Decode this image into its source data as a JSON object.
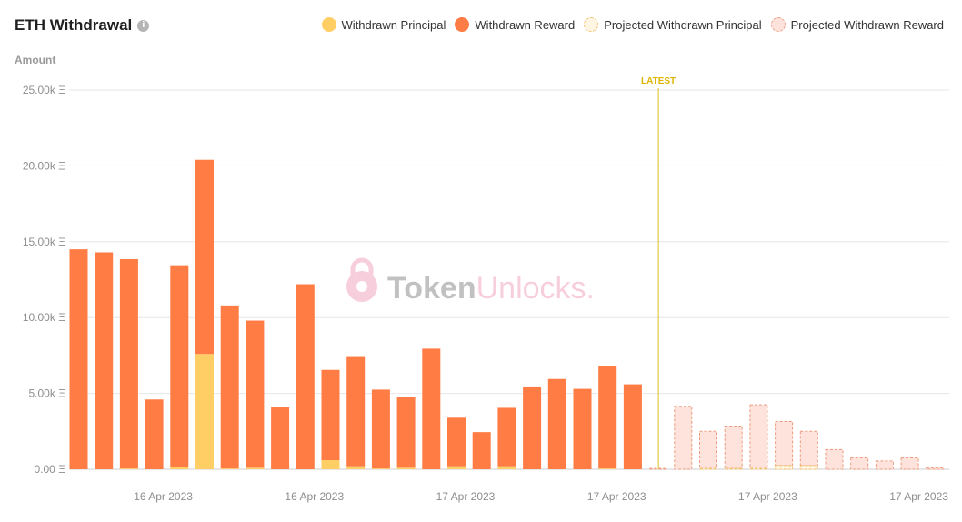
{
  "header": {
    "title": "ETH Withdrawal",
    "info_icon": "info-icon"
  },
  "legend": [
    {
      "label": "Withdrawn Principal",
      "color": "#ffcf66",
      "style": "solid"
    },
    {
      "label": "Withdrawn Reward",
      "color": "#ff7c45",
      "style": "solid"
    },
    {
      "label": "Projected Withdrawn Principal",
      "color": "#fff5e3",
      "style": "dashed"
    },
    {
      "label": "Projected Withdrawn Reward",
      "color": "#fde3dc",
      "style": "dashed"
    }
  ],
  "watermark": {
    "part1": "Token",
    "part2": "Unlocks",
    "dot": "."
  },
  "chart_data": {
    "type": "bar",
    "stacked": true,
    "ylabel": "Amount",
    "ylim": [
      0,
      25000
    ],
    "yticks": [
      0,
      5000,
      10000,
      15000,
      20000,
      25000
    ],
    "ytick_labels": [
      "0.00 Ξ",
      "5.00k Ξ",
      "10.00k Ξ",
      "15.00k Ξ",
      "20.00k Ξ",
      "25.00k Ξ"
    ],
    "grid": true,
    "legend_position": "top-right",
    "xtick_labels": [
      {
        "bar_index": 3,
        "label": "16 Apr 2023"
      },
      {
        "bar_index": 9,
        "label": "16 Apr 2023"
      },
      {
        "bar_index": 15,
        "label": "17 Apr 2023"
      },
      {
        "bar_index": 21,
        "label": "17 Apr 2023"
      },
      {
        "bar_index": 27,
        "label": "17 Apr 2023"
      },
      {
        "bar_index": 33,
        "label": "17 Apr 2023"
      }
    ],
    "latest_marker": {
      "label": "LATEST",
      "after_bar_index": 23
    },
    "series": [
      {
        "name": "Withdrawn Principal",
        "color": "#ffcf66",
        "values": [
          0,
          0,
          50,
          0,
          150,
          7600,
          50,
          100,
          0,
          0,
          600,
          200,
          50,
          100,
          0,
          200,
          0,
          200,
          0,
          0,
          0,
          50,
          0,
          null,
          null,
          null,
          null,
          null,
          null,
          null,
          null,
          null,
          null,
          null,
          null
        ]
      },
      {
        "name": "Withdrawn Reward",
        "color": "#ff7c45",
        "values": [
          14500,
          14300,
          13800,
          4600,
          13300,
          12800,
          10750,
          9700,
          4100,
          12200,
          5950,
          7200,
          5200,
          4650,
          7950,
          3200,
          2450,
          3850,
          5400,
          5950,
          5300,
          6750,
          5600,
          null,
          null,
          null,
          null,
          null,
          null,
          null,
          null,
          null,
          null,
          null,
          null
        ]
      },
      {
        "name": "Projected Withdrawn Principal",
        "color": "#fff5e3",
        "values": [
          null,
          null,
          null,
          null,
          null,
          null,
          null,
          null,
          null,
          null,
          null,
          null,
          null,
          null,
          null,
          null,
          null,
          null,
          null,
          null,
          null,
          null,
          null,
          0,
          0,
          50,
          50,
          50,
          250,
          250,
          0,
          0,
          0,
          0,
          0
        ]
      },
      {
        "name": "Projected Withdrawn Reward",
        "color": "#fde3dc",
        "values": [
          null,
          null,
          null,
          null,
          null,
          null,
          null,
          null,
          null,
          null,
          null,
          null,
          null,
          null,
          null,
          null,
          null,
          null,
          null,
          null,
          null,
          null,
          null,
          50,
          4150,
          2450,
          2800,
          4200,
          2900,
          2250,
          1300,
          750,
          550,
          750,
          100
        ]
      }
    ]
  }
}
